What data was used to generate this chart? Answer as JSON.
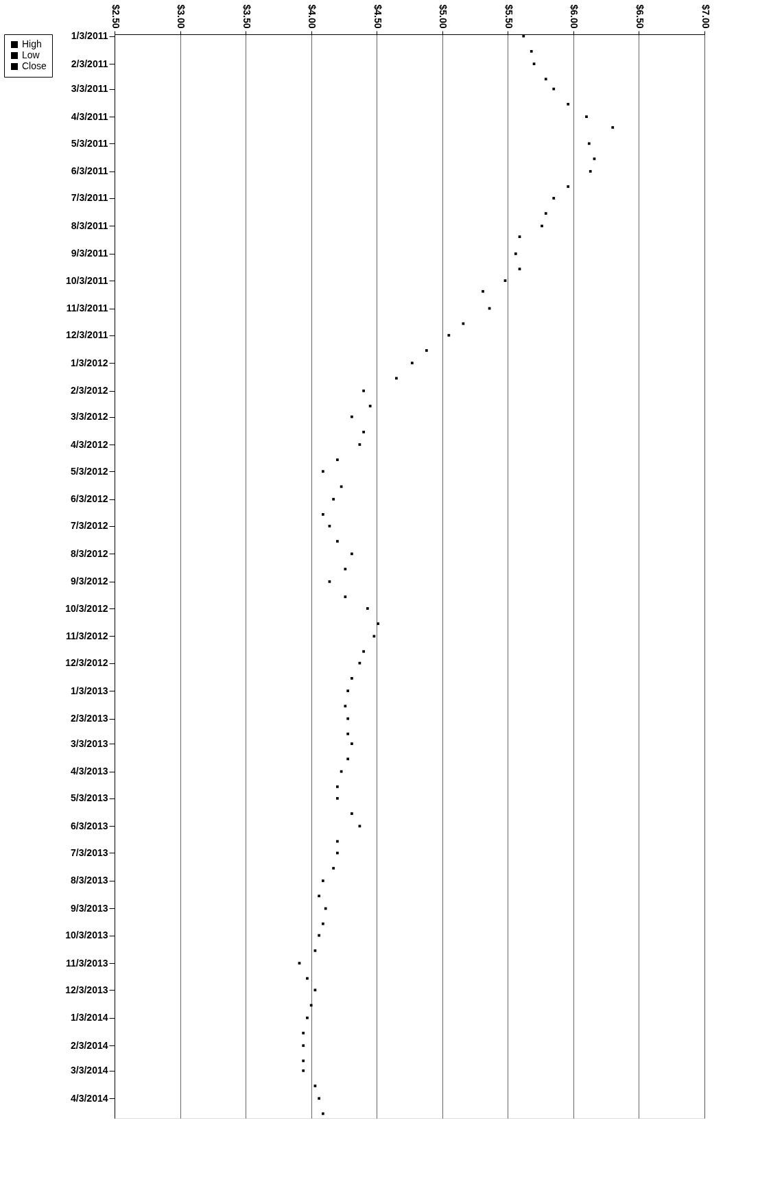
{
  "chart_data": {
    "type": "scatter",
    "orientation": "horizontal",
    "x": [
      "2011-01-03",
      "2011-01-20",
      "2011-02-03",
      "2011-02-20",
      "2011-03-03",
      "2011-03-20",
      "2011-04-03",
      "2011-04-15",
      "2011-05-03",
      "2011-05-20",
      "2011-06-03",
      "2011-06-20",
      "2011-07-03",
      "2011-07-20",
      "2011-08-03",
      "2011-08-15",
      "2011-09-03",
      "2011-09-20",
      "2011-10-03",
      "2011-10-15",
      "2011-11-03",
      "2011-11-20",
      "2011-12-03",
      "2011-12-20",
      "2012-01-03",
      "2012-01-20",
      "2012-02-03",
      "2012-02-20",
      "2012-03-03",
      "2012-03-20",
      "2012-04-03",
      "2012-04-20",
      "2012-05-03",
      "2012-05-20",
      "2012-06-03",
      "2012-06-20",
      "2012-07-03",
      "2012-07-20",
      "2012-08-03",
      "2012-08-20",
      "2012-09-03",
      "2012-09-20",
      "2012-10-03",
      "2012-10-20",
      "2012-11-03",
      "2012-11-20",
      "2012-12-03",
      "2012-12-20",
      "2013-01-03",
      "2013-01-20",
      "2013-02-03",
      "2013-02-20",
      "2013-03-03",
      "2013-03-20",
      "2013-04-03",
      "2013-04-20",
      "2013-05-03",
      "2013-05-20",
      "2013-06-03",
      "2013-06-20",
      "2013-07-03",
      "2013-07-20",
      "2013-08-03",
      "2013-08-20",
      "2013-09-03",
      "2013-09-20",
      "2013-10-03",
      "2013-10-20",
      "2013-11-03",
      "2013-11-20",
      "2013-12-03",
      "2013-12-20",
      "2014-01-03",
      "2014-01-20",
      "2014-02-03",
      "2014-02-20",
      "2014-03-03",
      "2014-03-20",
      "2014-04-03",
      "2014-04-20"
    ],
    "series": [
      {
        "name": "High",
        "color": "#000000",
        "values": [
          null,
          null,
          null,
          null,
          null,
          null,
          null,
          null,
          null,
          null,
          null,
          null,
          null,
          null,
          null,
          null,
          null,
          null,
          null,
          null,
          null,
          null,
          null,
          null,
          null,
          null,
          null,
          null,
          null,
          null,
          null,
          null,
          null,
          null,
          null,
          null,
          null,
          null,
          null,
          null,
          null,
          null,
          null,
          null,
          null,
          null,
          null,
          null,
          null,
          null,
          null,
          null,
          null,
          null,
          null,
          null,
          null,
          null,
          null,
          null,
          null,
          null,
          null,
          null,
          null,
          null,
          null,
          null,
          null,
          null,
          null,
          null,
          null,
          null,
          null,
          null,
          null,
          null,
          null,
          null
        ]
      },
      {
        "name": "Low",
        "color": "#000000",
        "values": [
          null,
          null,
          null,
          null,
          null,
          null,
          null,
          null,
          null,
          null,
          null,
          null,
          null,
          null,
          null,
          null,
          null,
          null,
          null,
          null,
          null,
          null,
          null,
          null,
          null,
          null,
          null,
          null,
          null,
          null,
          null,
          null,
          null,
          null,
          null,
          null,
          null,
          null,
          null,
          null,
          null,
          null,
          null,
          null,
          null,
          null,
          null,
          null,
          null,
          null,
          null,
          null,
          null,
          null,
          null,
          null,
          null,
          null,
          null,
          null,
          null,
          null,
          null,
          null,
          null,
          null,
          null,
          null,
          null,
          null,
          null,
          null,
          null,
          null,
          null,
          null,
          null,
          null,
          null,
          null
        ]
      },
      {
        "name": "Close",
        "color": "#000000",
        "values": [
          5.62,
          5.68,
          5.7,
          5.79,
          5.85,
          5.96,
          6.1,
          6.3,
          6.12,
          6.16,
          6.13,
          5.96,
          5.85,
          5.79,
          5.76,
          5.59,
          5.56,
          5.59,
          5.48,
          5.31,
          5.36,
          5.16,
          5.05,
          4.88,
          4.77,
          4.65,
          4.4,
          4.45,
          4.31,
          4.4,
          4.37,
          4.2,
          4.09,
          4.23,
          4.17,
          4.09,
          4.14,
          4.2,
          4.31,
          4.26,
          4.14,
          4.26,
          4.43,
          4.51,
          4.48,
          4.4,
          4.37,
          4.31,
          4.28,
          4.26,
          4.28,
          4.28,
          4.31,
          4.28,
          4.23,
          4.2,
          4.2,
          4.31,
          4.37,
          4.2,
          4.2,
          4.17,
          4.09,
          4.06,
          4.11,
          4.09,
          4.06,
          4.03,
          3.91,
          3.97,
          4.03,
          4.0,
          3.97,
          3.94,
          3.94,
          3.94,
          3.94,
          4.03,
          4.06,
          4.09
        ]
      }
    ],
    "xlim": [
      2.5,
      7.0
    ],
    "xticks": [
      {
        "value": 2.5,
        "label": "$2.50"
      },
      {
        "value": 3.0,
        "label": "$3.00"
      },
      {
        "value": 3.5,
        "label": "$3.50"
      },
      {
        "value": 4.0,
        "label": "$4.00"
      },
      {
        "value": 4.5,
        "label": "$4.50"
      },
      {
        "value": 5.0,
        "label": "$5.00"
      },
      {
        "value": 5.5,
        "label": "$5.50"
      },
      {
        "value": 6.0,
        "label": "$6.00"
      },
      {
        "value": 6.5,
        "label": "$6.50"
      },
      {
        "value": 7.0,
        "label": "$7.00"
      }
    ],
    "ylim": [
      "2014-04-25",
      "2011-01-01"
    ],
    "yticks": [
      {
        "value": "2011-01-03",
        "label": "1/3/2011"
      },
      {
        "value": "2011-02-03",
        "label": "2/3/2011"
      },
      {
        "value": "2011-03-03",
        "label": "3/3/2011"
      },
      {
        "value": "2011-04-03",
        "label": "4/3/2011"
      },
      {
        "value": "2011-05-03",
        "label": "5/3/2011"
      },
      {
        "value": "2011-06-03",
        "label": "6/3/2011"
      },
      {
        "value": "2011-07-03",
        "label": "7/3/2011"
      },
      {
        "value": "2011-08-03",
        "label": "8/3/2011"
      },
      {
        "value": "2011-09-03",
        "label": "9/3/2011"
      },
      {
        "value": "2011-10-03",
        "label": "10/3/2011"
      },
      {
        "value": "2011-11-03",
        "label": "11/3/2011"
      },
      {
        "value": "2011-12-03",
        "label": "12/3/2011"
      },
      {
        "value": "2012-01-03",
        "label": "1/3/2012"
      },
      {
        "value": "2012-02-03",
        "label": "2/3/2012"
      },
      {
        "value": "2012-03-03",
        "label": "3/3/2012"
      },
      {
        "value": "2012-04-03",
        "label": "4/3/2012"
      },
      {
        "value": "2012-05-03",
        "label": "5/3/2012"
      },
      {
        "value": "2012-06-03",
        "label": "6/3/2012"
      },
      {
        "value": "2012-07-03",
        "label": "7/3/2012"
      },
      {
        "value": "2012-08-03",
        "label": "8/3/2012"
      },
      {
        "value": "2012-09-03",
        "label": "9/3/2012"
      },
      {
        "value": "2012-10-03",
        "label": "10/3/2012"
      },
      {
        "value": "2012-11-03",
        "label": "11/3/2012"
      },
      {
        "value": "2012-12-03",
        "label": "12/3/2012"
      },
      {
        "value": "2013-01-03",
        "label": "1/3/2013"
      },
      {
        "value": "2013-02-03",
        "label": "2/3/2013"
      },
      {
        "value": "2013-03-03",
        "label": "3/3/2013"
      },
      {
        "value": "2013-04-03",
        "label": "4/3/2013"
      },
      {
        "value": "2013-05-03",
        "label": "5/3/2013"
      },
      {
        "value": "2013-06-03",
        "label": "6/3/2013"
      },
      {
        "value": "2013-07-03",
        "label": "7/3/2013"
      },
      {
        "value": "2013-08-03",
        "label": "8/3/2013"
      },
      {
        "value": "2013-09-03",
        "label": "9/3/2013"
      },
      {
        "value": "2013-10-03",
        "label": "10/3/2013"
      },
      {
        "value": "2013-11-03",
        "label": "11/3/2013"
      },
      {
        "value": "2013-12-03",
        "label": "12/3/2013"
      },
      {
        "value": "2014-01-03",
        "label": "1/3/2014"
      },
      {
        "value": "2014-02-03",
        "label": "2/3/2014"
      },
      {
        "value": "2014-03-03",
        "label": "3/3/2014"
      },
      {
        "value": "2014-04-03",
        "label": "4/3/2014"
      }
    ],
    "grid": "x",
    "legend": "left",
    "marker": "square"
  }
}
